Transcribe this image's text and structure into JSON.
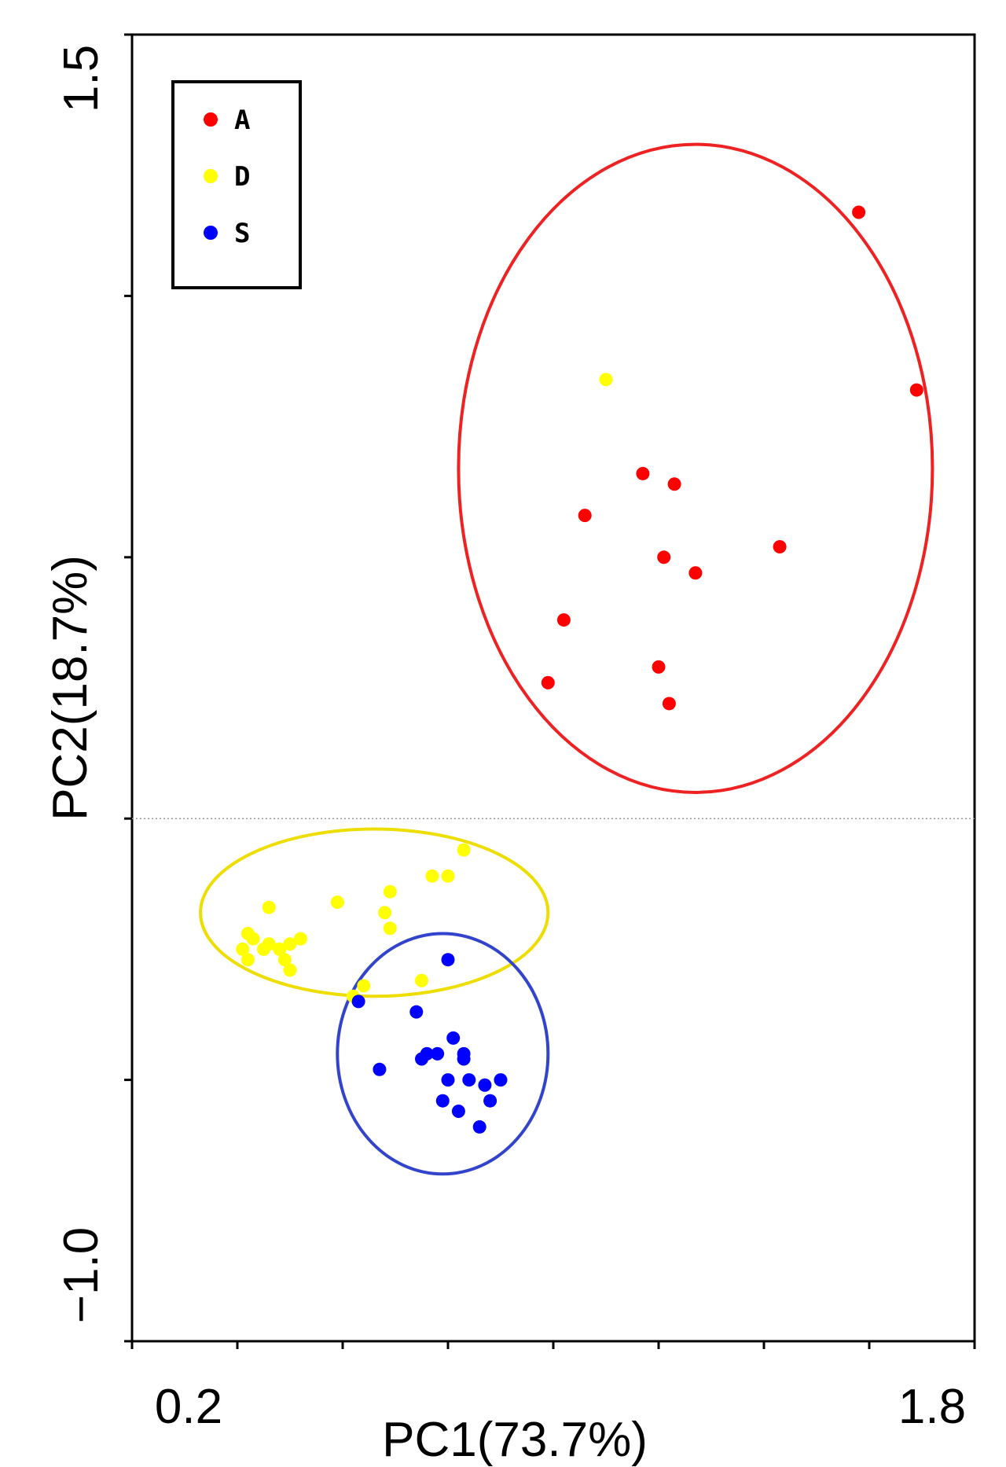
{
  "chart_data": {
    "type": "scatter",
    "xlabel": "PC1(73.7%)",
    "ylabel": "PC2(18.7%)",
    "xlim": [
      0.2,
      1.8
    ],
    "ylim": [
      -1.0,
      1.5
    ],
    "x_tick_labels": [
      "0.2",
      "1.8"
    ],
    "y_tick_labels": [
      "1.5",
      "−1.0"
    ],
    "x_minor_ticks": [
      0.4,
      0.6,
      0.8,
      1.0,
      1.2,
      1.4,
      1.6
    ],
    "y_minor_ticks": [
      -0.5,
      0.0,
      0.5,
      1.0
    ],
    "reference_line_y": 0.0,
    "grid": false,
    "legend": {
      "position": "top-left",
      "entries": [
        {
          "label": "A",
          "color": "#ff0000"
        },
        {
          "label": "D",
          "color": "#ffff00"
        },
        {
          "label": "S",
          "color": "#0000ff"
        }
      ]
    },
    "series": [
      {
        "name": "A",
        "color": "#ff0000",
        "points": [
          [
            1.58,
            1.16
          ],
          [
            1.69,
            0.82
          ],
          [
            1.17,
            0.66
          ],
          [
            1.23,
            0.64
          ],
          [
            1.06,
            0.58
          ],
          [
            1.21,
            0.5
          ],
          [
            1.43,
            0.52
          ],
          [
            1.27,
            0.47
          ],
          [
            1.02,
            0.38
          ],
          [
            1.2,
            0.29
          ],
          [
            0.99,
            0.26
          ],
          [
            1.22,
            0.22
          ]
        ]
      },
      {
        "name": "D",
        "color": "#ffff00",
        "points": [
          [
            1.1,
            0.84
          ],
          [
            0.83,
            -0.06
          ],
          [
            0.8,
            -0.11
          ],
          [
            0.77,
            -0.11
          ],
          [
            0.69,
            -0.14
          ],
          [
            0.59,
            -0.16
          ],
          [
            0.46,
            -0.17
          ],
          [
            0.68,
            -0.18
          ],
          [
            0.69,
            -0.21
          ],
          [
            0.42,
            -0.22
          ],
          [
            0.43,
            -0.23
          ],
          [
            0.52,
            -0.23
          ],
          [
            0.5,
            -0.24
          ],
          [
            0.46,
            -0.24
          ],
          [
            0.45,
            -0.25
          ],
          [
            0.41,
            -0.25
          ],
          [
            0.48,
            -0.25
          ],
          [
            0.42,
            -0.27
          ],
          [
            0.49,
            -0.27
          ],
          [
            0.5,
            -0.29
          ],
          [
            0.64,
            -0.32
          ],
          [
            0.75,
            -0.31
          ],
          [
            0.62,
            -0.34
          ]
        ]
      },
      {
        "name": "S",
        "color": "#0000ff",
        "points": [
          [
            0.8,
            -0.27
          ],
          [
            0.63,
            -0.35
          ],
          [
            0.74,
            -0.37
          ],
          [
            0.81,
            -0.42
          ],
          [
            0.76,
            -0.45
          ],
          [
            0.78,
            -0.45
          ],
          [
            0.83,
            -0.45
          ],
          [
            0.83,
            -0.46
          ],
          [
            0.75,
            -0.46
          ],
          [
            0.67,
            -0.48
          ],
          [
            0.8,
            -0.5
          ],
          [
            0.84,
            -0.5
          ],
          [
            0.87,
            -0.51
          ],
          [
            0.9,
            -0.5
          ],
          [
            0.79,
            -0.54
          ],
          [
            0.82,
            -0.56
          ],
          [
            0.88,
            -0.54
          ],
          [
            0.86,
            -0.59
          ]
        ]
      }
    ],
    "confidence_ellipses": [
      {
        "series": "A",
        "color": "#ee2222",
        "center": [
          1.27,
          0.67
        ],
        "radii": [
          0.45,
          0.62
        ]
      },
      {
        "series": "D",
        "color": "#eedd00",
        "center": [
          0.66,
          -0.18
        ],
        "radii": [
          0.33,
          0.16
        ]
      },
      {
        "series": "S",
        "color": "#3344cc",
        "center": [
          0.79,
          -0.45
        ],
        "radii": [
          0.2,
          0.23
        ]
      }
    ]
  }
}
